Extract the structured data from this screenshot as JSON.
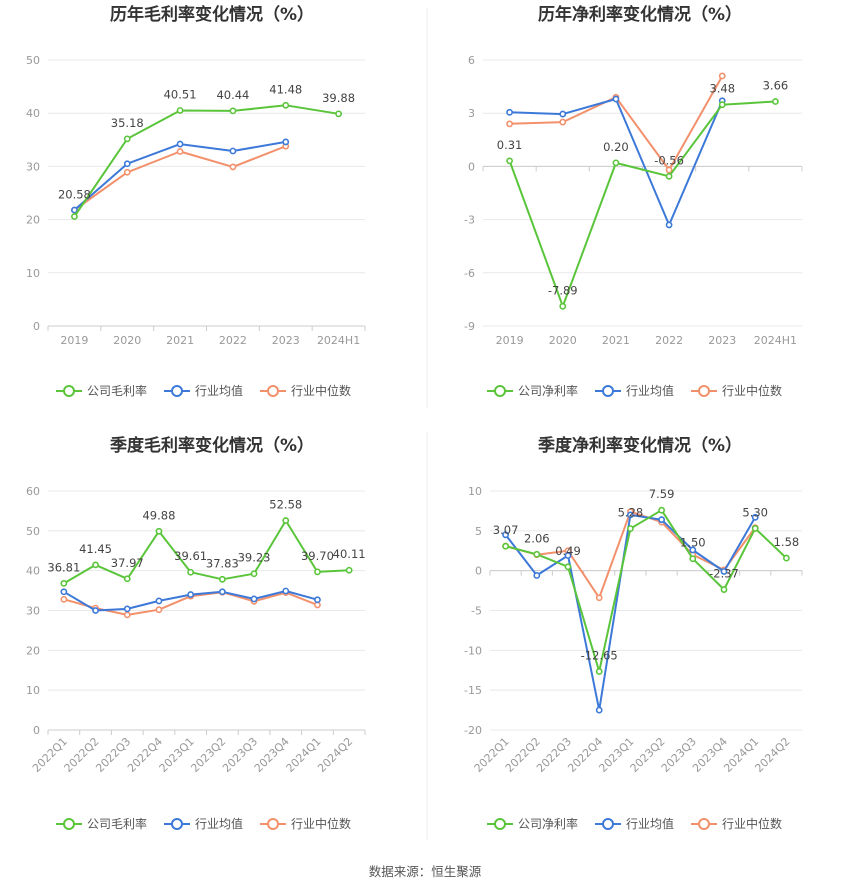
{
  "colors": {
    "company": "#5ac53a",
    "avg": "#3d79d8",
    "median": "#f3906c",
    "grid": "#e8e8e8",
    "axis": "#cccccc"
  },
  "legend_company_gross": "公司毛利率",
  "legend_company_net": "公司净利率",
  "legend_avg": "行业均值",
  "legend_median": "行业中位数",
  "source": "数据来源：恒生聚源",
  "chart_data": [
    {
      "type": "line",
      "title": "历年毛利率变化情况（%）",
      "categories": [
        "2019",
        "2020",
        "2021",
        "2022",
        "2023",
        "2024H1"
      ],
      "ylim": [
        0,
        50
      ],
      "yticks": [
        0,
        10,
        20,
        30,
        40,
        50
      ],
      "grid": true,
      "legend_position": "bottom",
      "series": [
        {
          "name": "公司毛利率",
          "role": "company",
          "values": [
            20.58,
            35.18,
            40.51,
            40.44,
            41.48,
            39.88
          ],
          "labels": [
            "20.58",
            "35.18",
            "40.51",
            "40.44",
            "41.48",
            "39.88"
          ]
        },
        {
          "name": "行业均值",
          "role": "avg",
          "values": [
            21.8,
            30.5,
            34.2,
            32.9,
            34.6,
            null
          ]
        },
        {
          "name": "行业中位数",
          "role": "median",
          "values": [
            21.8,
            28.9,
            32.8,
            29.9,
            33.8,
            null
          ]
        }
      ]
    },
    {
      "type": "line",
      "title": "历年净利率变化情况（%）",
      "categories": [
        "2019",
        "2020",
        "2021",
        "2022",
        "2023",
        "2024H1"
      ],
      "ylim": [
        -9,
        6
      ],
      "yticks": [
        -9,
        -6,
        -3,
        0,
        3,
        6
      ],
      "grid": true,
      "legend_position": "bottom",
      "series": [
        {
          "name": "公司净利率",
          "role": "company",
          "values": [
            0.31,
            -7.89,
            0.2,
            -0.56,
            3.48,
            3.66
          ],
          "labels": [
            "0.31",
            "-7.89",
            "0.20",
            "-0.56",
            "3.48",
            "3.66"
          ]
        },
        {
          "name": "行业均值",
          "role": "avg",
          "values": [
            3.05,
            2.95,
            3.8,
            -3.3,
            3.7,
            null
          ]
        },
        {
          "name": "行业中位数",
          "role": "median",
          "values": [
            2.4,
            2.5,
            3.9,
            -0.2,
            5.1,
            null
          ]
        }
      ]
    },
    {
      "type": "line",
      "title": "季度毛利率变化情况（%）",
      "categories": [
        "2022Q1",
        "2022Q2",
        "2022Q3",
        "2022Q4",
        "2023Q1",
        "2023Q2",
        "2023Q3",
        "2023Q4",
        "2024Q1",
        "2024Q2"
      ],
      "ylim": [
        0,
        60
      ],
      "yticks": [
        0,
        10,
        20,
        30,
        40,
        50,
        60
      ],
      "grid": true,
      "legend_position": "bottom",
      "series": [
        {
          "name": "公司毛利率",
          "role": "company",
          "values": [
            36.81,
            41.45,
            37.97,
            49.88,
            39.61,
            37.83,
            39.23,
            52.58,
            39.7,
            40.11
          ],
          "labels": [
            "36.81",
            "41.45",
            "37.97",
            "49.88",
            "39.61",
            "37.83",
            "39.23",
            "52.58",
            "39.70",
            "40.11"
          ]
        },
        {
          "name": "行业均值",
          "role": "avg",
          "values": [
            34.7,
            30.0,
            30.4,
            32.4,
            34.0,
            34.7,
            32.9,
            34.9,
            32.7,
            null
          ]
        },
        {
          "name": "行业中位数",
          "role": "median",
          "values": [
            32.8,
            30.6,
            28.9,
            30.2,
            33.6,
            34.6,
            32.3,
            34.5,
            31.4,
            null
          ]
        }
      ]
    },
    {
      "type": "line",
      "title": "季度净利率变化情况（%）",
      "categories": [
        "2022Q1",
        "2022Q2",
        "2022Q3",
        "2022Q4",
        "2023Q1",
        "2023Q2",
        "2023Q3",
        "2023Q4",
        "2024Q1",
        "2024Q2"
      ],
      "ylim": [
        -20,
        10
      ],
      "yticks": [
        -20,
        -15,
        -10,
        -5,
        0,
        5,
        10
      ],
      "grid": true,
      "legend_position": "bottom",
      "series": [
        {
          "name": "公司净利率",
          "role": "company",
          "values": [
            3.07,
            2.06,
            0.49,
            -12.65,
            5.28,
            7.59,
            1.5,
            -2.37,
            5.3,
            1.58
          ],
          "labels": [
            "3.07",
            "2.06",
            "0.49",
            "-12.65",
            "5.28",
            "7.59",
            "1.50",
            "-2.37",
            "5.30",
            "1.58"
          ]
        },
        {
          "name": "行业均值",
          "role": "avg",
          "values": [
            4.5,
            -0.6,
            1.9,
            -17.5,
            7.0,
            6.4,
            2.6,
            -0.1,
            6.7,
            null
          ]
        },
        {
          "name": "行业中位数",
          "role": "median",
          "values": [
            3.1,
            2.0,
            2.5,
            -3.4,
            7.4,
            6.1,
            2.0,
            0.1,
            5.4,
            null
          ]
        }
      ]
    }
  ]
}
